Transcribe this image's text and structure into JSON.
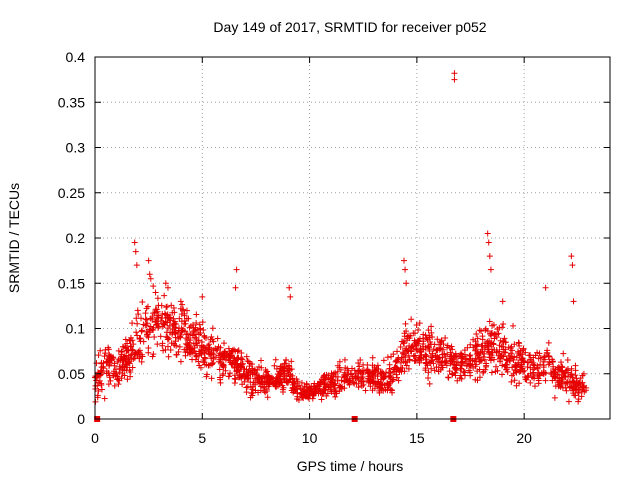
{
  "chart_data": {
    "type": "scatter",
    "title": "Day 149 of 2017, SRMTID for receiver p052",
    "xlabel": "GPS time / hours",
    "ylabel": "SRMTID / TECUs",
    "xlim": [
      0,
      24
    ],
    "ylim": [
      0,
      0.4
    ],
    "xticks": [
      0,
      5,
      10,
      15,
      20
    ],
    "yticks": [
      0,
      0.05,
      0.1,
      0.15,
      0.2,
      0.25,
      0.3,
      0.35,
      0.4
    ],
    "xtick_labels": [
      "0",
      "5",
      "10",
      "15",
      "20"
    ],
    "ytick_labels": [
      "0",
      "0.05",
      "0.1",
      "0.15",
      "0.2",
      "0.25",
      "0.3",
      "0.35",
      "0.4"
    ],
    "grid": true,
    "marker": "+",
    "color": "#e60000",
    "series": [
      {
        "name": "SRMTID",
        "envelope": [
          [
            0.0,
            0.04,
            0.02
          ],
          [
            0.5,
            0.06,
            0.025
          ],
          [
            1.0,
            0.05,
            0.02
          ],
          [
            1.5,
            0.07,
            0.02
          ],
          [
            2.0,
            0.09,
            0.03
          ],
          [
            2.5,
            0.1,
            0.03
          ],
          [
            3.0,
            0.11,
            0.03
          ],
          [
            3.5,
            0.1,
            0.03
          ],
          [
            4.0,
            0.095,
            0.03
          ],
          [
            4.5,
            0.09,
            0.025
          ],
          [
            5.0,
            0.08,
            0.025
          ],
          [
            5.5,
            0.07,
            0.025
          ],
          [
            6.0,
            0.065,
            0.02
          ],
          [
            6.5,
            0.06,
            0.02
          ],
          [
            7.0,
            0.05,
            0.02
          ],
          [
            7.5,
            0.045,
            0.02
          ],
          [
            8.0,
            0.04,
            0.015
          ],
          [
            8.5,
            0.045,
            0.015
          ],
          [
            9.0,
            0.05,
            0.02
          ],
          [
            9.5,
            0.03,
            0.01
          ],
          [
            10.0,
            0.03,
            0.01
          ],
          [
            10.5,
            0.035,
            0.01
          ],
          [
            11.0,
            0.04,
            0.012
          ],
          [
            11.5,
            0.045,
            0.015
          ],
          [
            12.0,
            0.05,
            0.015
          ],
          [
            12.5,
            0.05,
            0.015
          ],
          [
            13.0,
            0.045,
            0.015
          ],
          [
            13.5,
            0.045,
            0.015
          ],
          [
            14.0,
            0.05,
            0.02
          ],
          [
            14.5,
            0.08,
            0.025
          ],
          [
            15.0,
            0.08,
            0.025
          ],
          [
            15.5,
            0.075,
            0.025
          ],
          [
            16.0,
            0.07,
            0.02
          ],
          [
            16.5,
            0.065,
            0.02
          ],
          [
            17.0,
            0.06,
            0.02
          ],
          [
            17.5,
            0.065,
            0.02
          ],
          [
            18.0,
            0.075,
            0.025
          ],
          [
            18.5,
            0.08,
            0.03
          ],
          [
            19.0,
            0.07,
            0.025
          ],
          [
            19.5,
            0.065,
            0.025
          ],
          [
            20.0,
            0.06,
            0.02
          ],
          [
            20.5,
            0.055,
            0.02
          ],
          [
            21.0,
            0.06,
            0.02
          ],
          [
            21.5,
            0.05,
            0.02
          ],
          [
            22.0,
            0.045,
            0.02
          ],
          [
            22.5,
            0.04,
            0.015
          ],
          [
            22.9,
            0.035,
            0.01
          ]
        ],
        "spikes": [
          [
            1.85,
            0.195
          ],
          [
            1.9,
            0.185
          ],
          [
            1.95,
            0.17
          ],
          [
            2.5,
            0.175
          ],
          [
            2.55,
            0.16
          ],
          [
            2.6,
            0.155
          ],
          [
            3.3,
            0.15
          ],
          [
            3.4,
            0.145
          ],
          [
            4.0,
            0.13
          ],
          [
            5.0,
            0.135
          ],
          [
            6.6,
            0.165
          ],
          [
            6.55,
            0.145
          ],
          [
            9.05,
            0.145
          ],
          [
            9.1,
            0.135
          ],
          [
            14.4,
            0.175
          ],
          [
            14.45,
            0.165
          ],
          [
            14.5,
            0.15
          ],
          [
            18.3,
            0.205
          ],
          [
            18.35,
            0.195
          ],
          [
            18.4,
            0.18
          ],
          [
            18.45,
            0.165
          ],
          [
            19.0,
            0.13
          ],
          [
            21.0,
            0.145
          ],
          [
            22.2,
            0.18
          ],
          [
            22.25,
            0.17
          ],
          [
            22.3,
            0.13
          ],
          [
            16.75,
            0.382
          ],
          [
            16.75,
            0.375
          ]
        ]
      }
    ],
    "gap_markers_x": [
      0.1,
      12.1,
      16.7
    ]
  }
}
